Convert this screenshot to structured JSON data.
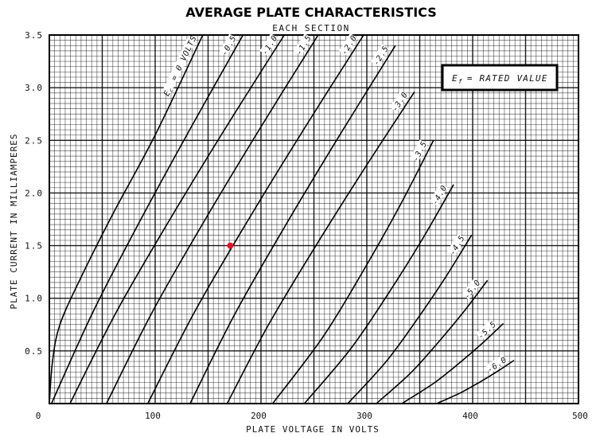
{
  "chart_data": {
    "type": "line",
    "title": "AVERAGE PLATE CHARACTERISTICS",
    "subtitle": "EACH SECTION",
    "xlabel": "PLATE VOLTAGE IN VOLTS",
    "ylabel": "PLATE CURRENT IN MILLIAMPERES",
    "xlim": [
      0,
      500
    ],
    "ylim": [
      0,
      3.5
    ],
    "grid": true,
    "x_ticks": [
      "0",
      "100",
      "200",
      "300",
      "400",
      "500"
    ],
    "x_tick_values": [
      0,
      100,
      200,
      300,
      400,
      500
    ],
    "y_ticks": [
      "0.5",
      "1.0",
      "1.5",
      "2.0",
      "2.5",
      "3.0",
      "3.5"
    ],
    "y_tick_values": [
      0.5,
      1.0,
      1.5,
      2.0,
      2.5,
      3.0,
      3.5
    ],
    "legend_box": {
      "text_main": "E",
      "text_sub": "f",
      "text_rest": "= RATED VALUE",
      "placement": "top-right"
    },
    "series": [
      {
        "name": "Ec = 0 VOLTS",
        "label_main": "E",
        "label_sub": "c",
        "label_rest": "= 0 VOLTS",
        "points": [
          [
            0,
            0
          ],
          [
            3,
            0.4
          ],
          [
            10,
            0.75
          ],
          [
            30,
            1.2
          ],
          [
            60,
            1.8
          ],
          [
            100,
            2.55
          ],
          [
            145,
            3.5
          ]
        ]
      },
      {
        "name": "-0.5",
        "label_rest": "-0.5",
        "points": [
          [
            2,
            0
          ],
          [
            41.5,
            0.875
          ],
          [
            86.5,
            1.75
          ],
          [
            134,
            2.625
          ],
          [
            183,
            3.5
          ]
        ]
      },
      {
        "name": "-1.0",
        "label_rest": "-1.0",
        "points": [
          [
            19.5,
            0
          ],
          [
            63.6,
            0.875
          ],
          [
            114,
            1.75
          ],
          [
            167,
            2.625
          ],
          [
            222,
            3.5
          ]
        ]
      },
      {
        "name": "-1.5",
        "label_rest": "-1.5",
        "points": [
          [
            54,
            0
          ],
          [
            97.6,
            0.875
          ],
          [
            147.4,
            1.75
          ],
          [
            199.8,
            2.625
          ],
          [
            254,
            3.5
          ]
        ]
      },
      {
        "name": "-2.0",
        "label_rest": "-2.0",
        "points": [
          [
            93,
            0
          ],
          [
            137.5,
            0.875
          ],
          [
            188.3,
            1.75
          ],
          [
            241.7,
            2.625
          ],
          [
            297,
            3.5
          ]
        ]
      },
      {
        "name": "-2.5",
        "label_rest": "-2.5",
        "points": [
          [
            133,
            0
          ],
          [
            175.3,
            0.85
          ],
          [
            223.6,
            1.7
          ],
          [
            274.4,
            2.55
          ],
          [
            327,
            3.4
          ]
        ]
      },
      {
        "name": "-3.0",
        "label_rest": "-3.0",
        "points": [
          [
            168,
            0
          ],
          [
            206.6,
            0.74
          ],
          [
            250.7,
            1.48
          ],
          [
            297,
            2.22
          ],
          [
            345,
            2.96
          ]
        ]
      },
      {
        "name": "-3.5",
        "label_rest": "-3.5",
        "points": [
          [
            211,
            0
          ],
          [
            258,
            0.625
          ],
          [
            296,
            1.25
          ],
          [
            331,
            1.875
          ],
          [
            363,
            2.5
          ]
        ]
      },
      {
        "name": "-4.0",
        "label_rest": "-4.0",
        "points": [
          [
            241,
            0
          ],
          [
            284.7,
            0.52
          ],
          [
            320,
            1.04
          ],
          [
            352.4,
            1.56
          ],
          [
            382,
            2.08
          ]
        ]
      },
      {
        "name": "-4.5",
        "label_rest": "-4.5",
        "points": [
          [
            282,
            0
          ],
          [
            318.3,
            0.4
          ],
          [
            347.5,
            0.8
          ],
          [
            374.4,
            1.2
          ],
          [
            399,
            1.6
          ]
        ]
      },
      {
        "name": "-5.0",
        "label_rest": "-5.0",
        "points": [
          [
            309,
            0
          ],
          [
            341.6,
            0.2925
          ],
          [
            367.8,
            0.585
          ],
          [
            392,
            0.8775
          ],
          [
            414,
            1.17
          ]
        ]
      },
      {
        "name": "-5.5",
        "label_rest": "-5.5",
        "points": [
          [
            333,
            0
          ],
          [
            362.8,
            0.19
          ],
          [
            386.8,
            0.38
          ],
          [
            408.8,
            0.57
          ],
          [
            429,
            0.76
          ]
        ]
      },
      {
        "name": "-6.0",
        "label_rest": "-6.0",
        "points": [
          [
            366,
            0
          ],
          [
            388.6,
            0.1025
          ],
          [
            406.9,
            0.205
          ],
          [
            423.7,
            0.3075
          ],
          [
            439,
            0.41
          ]
        ]
      }
    ],
    "marker": {
      "x": 171,
      "y": 1.5,
      "color": "#e8102a"
    }
  }
}
